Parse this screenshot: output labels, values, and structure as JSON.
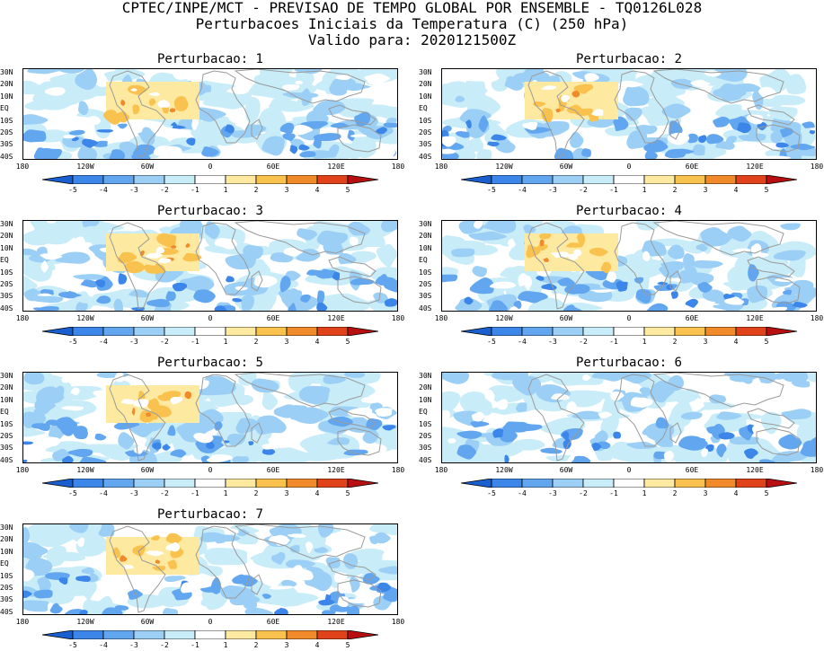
{
  "header": {
    "line1": "CPTEC/INPE/MCT - PREVISAO DE TEMPO GLOBAL POR ENSEMBLE - TQ0126L028",
    "line2": "Perturbacoes Iniciais da Temperatura (C) (250 hPa)",
    "line3": "Valido para: 2020121500Z"
  },
  "panels": [
    {
      "title": "Perturbacao: 1"
    },
    {
      "title": "Perturbacao: 2"
    },
    {
      "title": "Perturbacao: 3"
    },
    {
      "title": "Perturbacao: 4"
    },
    {
      "title": "Perturbacao: 5"
    },
    {
      "title": "Perturbacao: 6"
    },
    {
      "title": "Perturbacao: 7"
    }
  ],
  "axes": {
    "lat_labels": [
      "30N",
      "20N",
      "10N",
      "EQ",
      "10S",
      "20S",
      "30S",
      "40S"
    ],
    "lon_labels": [
      "180",
      "120W",
      "60W",
      "0",
      "60E",
      "120E",
      "180"
    ]
  },
  "colorbar": {
    "labels": [
      "-5",
      "-4",
      "-3",
      "-2",
      "-1",
      "1",
      "2",
      "3",
      "4",
      "5"
    ],
    "colors": [
      "#1a5fd0",
      "#3b86e8",
      "#62a6f0",
      "#9ccff5",
      "#c8ecf8",
      "#ffffff",
      "#fde9a0",
      "#f9c24e",
      "#f08a2a",
      "#e0431a",
      "#b81010"
    ]
  }
}
